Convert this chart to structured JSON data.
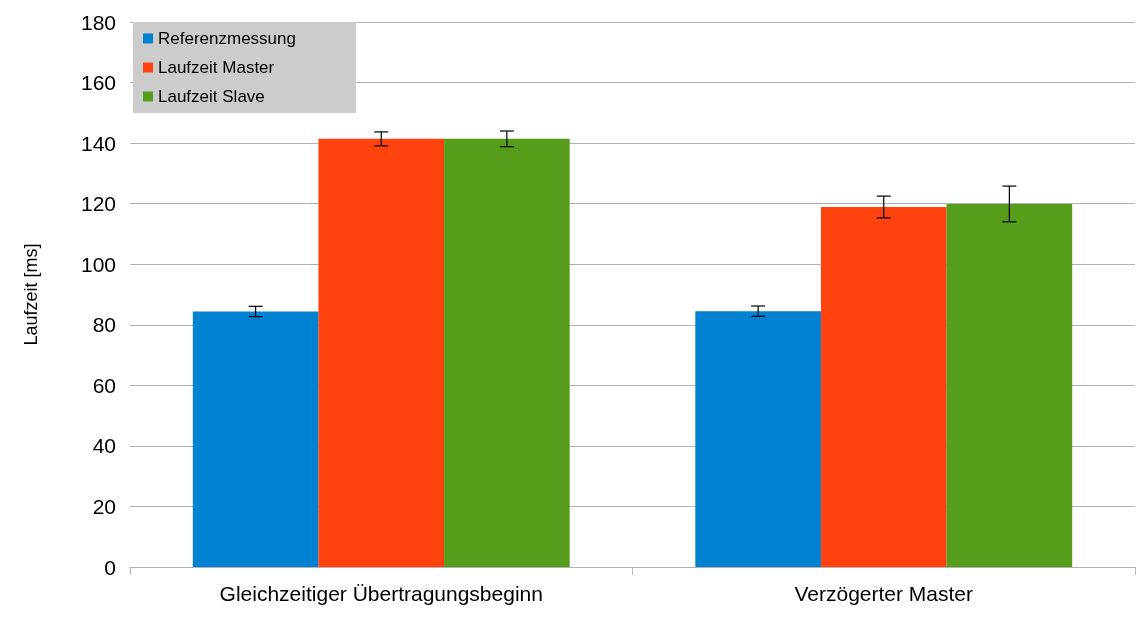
{
  "chart_data": {
    "type": "bar",
    "ylabel": "Laufzeit [ms]",
    "categories": [
      "Gleichzeitiger Übertragungsbeginn",
      "Verzögerter Master"
    ],
    "series": [
      {
        "name": "Referenzmessung",
        "color": "#0081d1",
        "values": [
          84.4,
          84.5
        ],
        "errors": [
          1.7,
          1.7
        ]
      },
      {
        "name": "Laufzeit Master",
        "color": "#ff420e",
        "values": [
          141.4,
          118.9
        ],
        "errors": [
          2.3,
          3.6
        ]
      },
      {
        "name": "Laufzeit Slave",
        "color": "#579d1c",
        "values": [
          141.4,
          119.9
        ],
        "errors": [
          2.6,
          5.9
        ]
      }
    ],
    "ylim": [
      0,
      180
    ],
    "yticks": [
      0,
      20,
      40,
      60,
      80,
      100,
      120,
      140,
      160,
      180
    ],
    "grid": "y",
    "legend": "top left"
  }
}
